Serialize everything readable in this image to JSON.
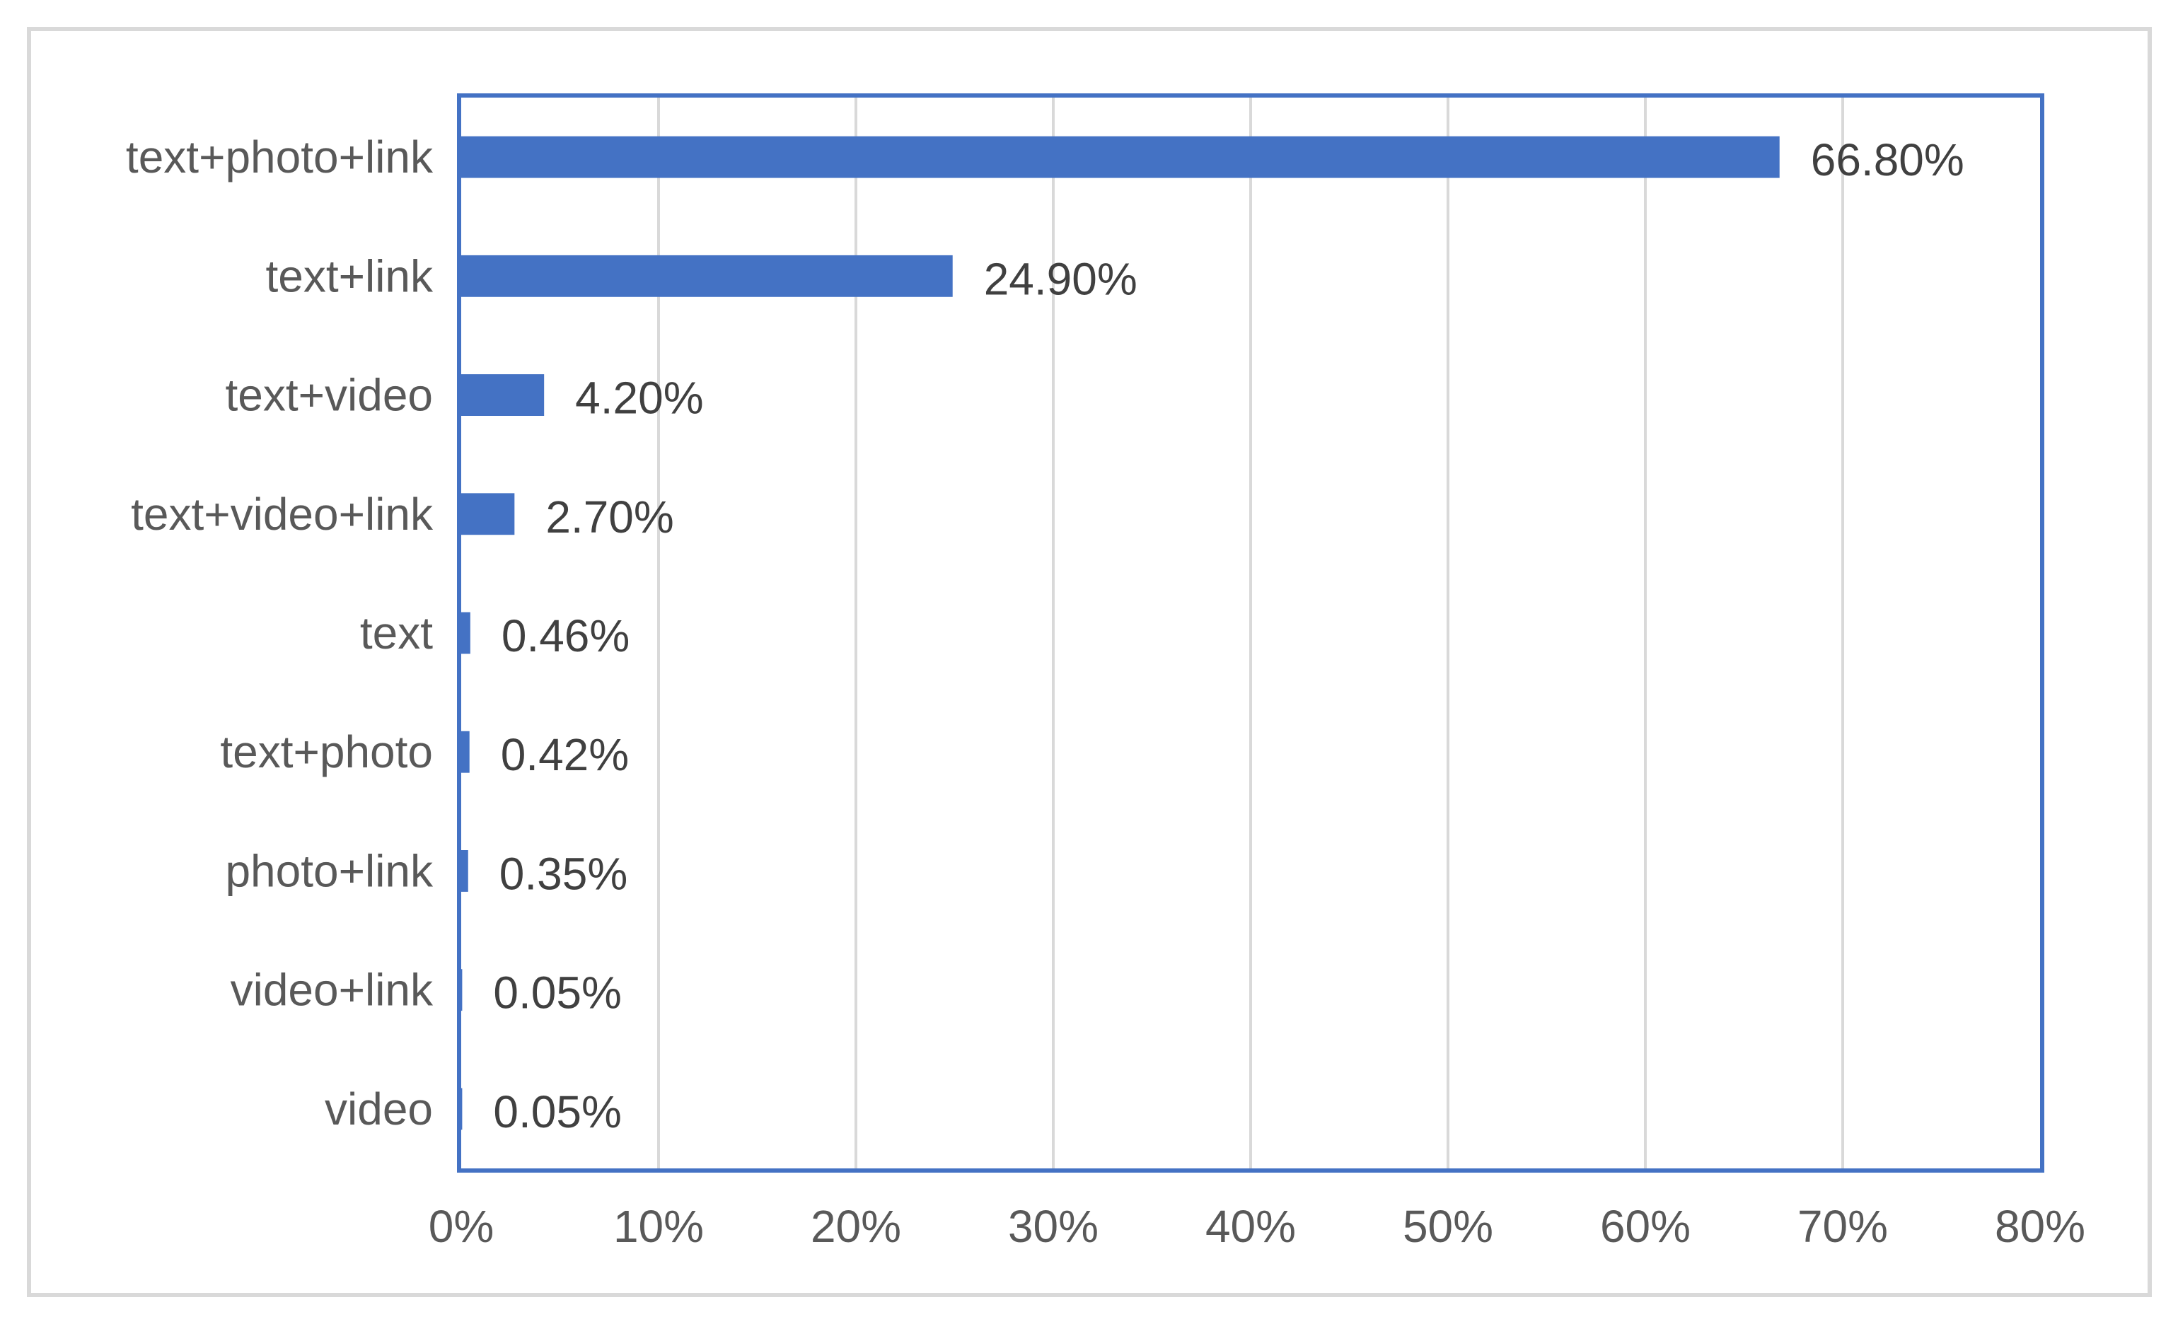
{
  "chart_data": {
    "type": "bar",
    "orientation": "horizontal",
    "categories": [
      "text+photo+link",
      "text+link",
      "text+video",
      "text+video+link",
      "text",
      "text+photo",
      "photo+link",
      "video+link",
      "video"
    ],
    "values": [
      66.8,
      24.9,
      4.2,
      2.7,
      0.46,
      0.42,
      0.35,
      0.05,
      0.05
    ],
    "data_labels": [
      "66.80%",
      "24.90%",
      "4.20%",
      "2.70%",
      "0.46%",
      "0.42%",
      "0.35%",
      "0.05%",
      "0.05%"
    ],
    "xlim": [
      0,
      80
    ],
    "x_ticks": [
      0,
      10,
      20,
      30,
      40,
      50,
      60,
      70,
      80
    ],
    "x_tick_labels": [
      "0%",
      "10%",
      "20%",
      "30%",
      "40%",
      "50%",
      "60%",
      "70%",
      "80%"
    ],
    "title": "",
    "xlabel": "",
    "ylabel": "",
    "grid": true,
    "legend": "none",
    "colors": {
      "bar": "#4472C4",
      "plot_border": "#4472C4",
      "gridline": "#d9d9d9",
      "frame": "#d9d9d9",
      "text": "#595959"
    }
  }
}
